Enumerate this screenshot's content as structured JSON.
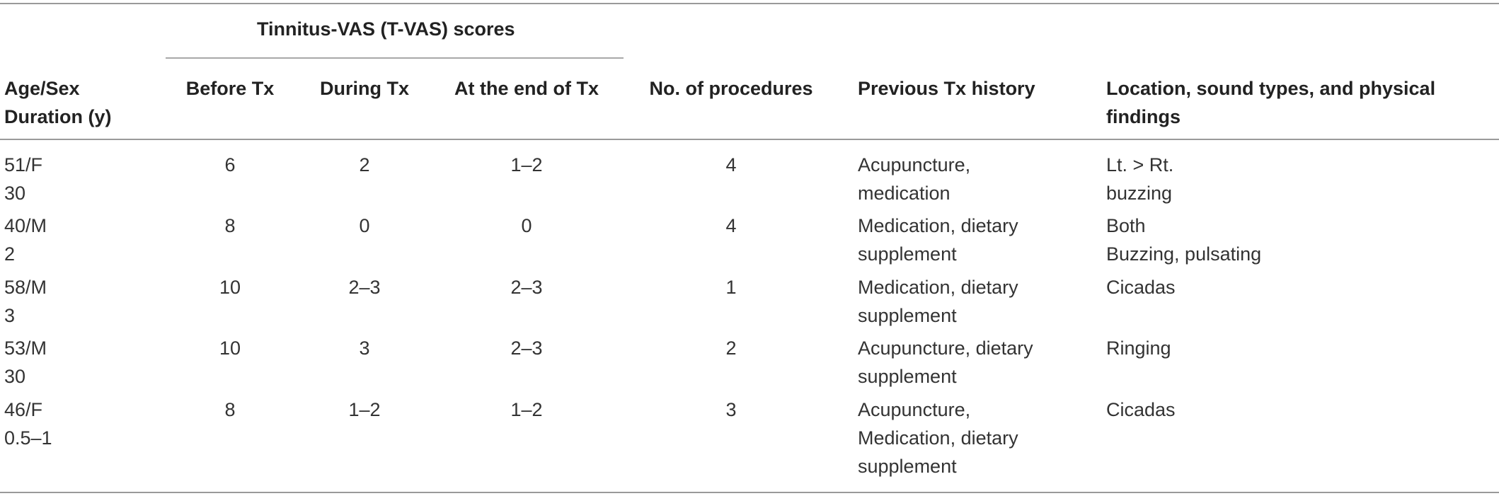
{
  "table": {
    "group_header": "Tinnitus-VAS (T-VAS) scores",
    "headers": {
      "age_sex_duration": "Age/Sex\nDuration (y)",
      "before_tx": "Before Tx",
      "during_tx": "During Tx",
      "end_tx": "At the end of Tx",
      "procedures": "No. of procedures",
      "previous_tx": "Previous Tx history",
      "location": "Location, sound types, and physical\nfindings"
    },
    "rows": [
      {
        "age_sex": "51/F\n30",
        "before": "6",
        "during": "2",
        "end": "1–2",
        "procedures": "4",
        "previous": "Acupuncture,\nmedication",
        "location": "Lt. > Rt.\nbuzzing"
      },
      {
        "age_sex": "40/M\n2",
        "before": "8",
        "during": "0",
        "end": "0",
        "procedures": "4",
        "previous": "Medication, dietary\nsupplement",
        "location": "Both\nBuzzing, pulsating"
      },
      {
        "age_sex": "58/M\n3",
        "before": "10",
        "during": "2–3",
        "end": "2–3",
        "procedures": "1",
        "previous": "Medication, dietary\nsupplement",
        "location": "Cicadas"
      },
      {
        "age_sex": "53/M\n30",
        "before": "10",
        "during": "3",
        "end": "2–3",
        "procedures": "2",
        "previous": "Acupuncture, dietary\nsupplement",
        "location": "Ringing"
      },
      {
        "age_sex": "46/F\n0.5–1",
        "before": "8",
        "during": "1–2",
        "end": "1–2",
        "procedures": "3",
        "previous": "Acupuncture,\nMedication, dietary\nsupplement",
        "location": "Cicadas"
      }
    ]
  }
}
